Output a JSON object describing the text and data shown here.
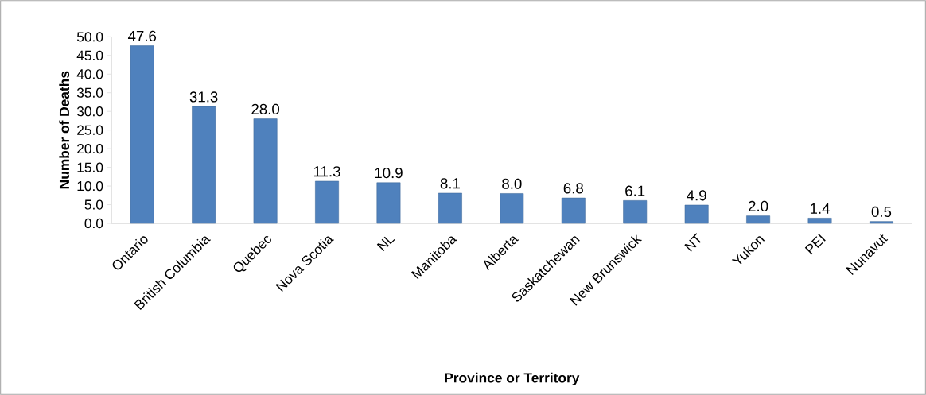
{
  "chart_data": {
    "type": "bar",
    "xlabel": "Province or Territory",
    "ylabel": "Number of Deaths",
    "categories": [
      "Ontario",
      "British Columbia",
      "Quebec",
      "Nova Scotia",
      "NL",
      "Manitoba",
      "Alberta",
      "Saskatchewan",
      "New Brunswick",
      "NT",
      "Yukon",
      "PEI",
      "Nunavut"
    ],
    "values": [
      47.6,
      31.3,
      28.0,
      11.3,
      10.9,
      8.1,
      8.0,
      6.8,
      6.1,
      4.9,
      2.0,
      1.4,
      0.5
    ],
    "color": "#4f81bd",
    "ylim": [
      0,
      50
    ],
    "yticks": [
      {
        "value": 0,
        "label": "0.0"
      },
      {
        "value": 5,
        "label": "5.0"
      },
      {
        "value": 10,
        "label": "10.0"
      },
      {
        "value": 15,
        "label": "15.0"
      },
      {
        "value": 20,
        "label": "20.0"
      },
      {
        "value": 25,
        "label": "25.0"
      },
      {
        "value": 30,
        "label": "30.0"
      },
      {
        "value": 35,
        "label": "35.0"
      },
      {
        "value": 40,
        "label": "40.0"
      },
      {
        "value": 45,
        "label": "45.0"
      },
      {
        "value": 50,
        "label": "50.0"
      }
    ],
    "value_labels": [
      "47.6",
      "31.3",
      "28.0",
      "11.3",
      "10.9",
      "8.1",
      "8.0",
      "6.8",
      "6.1",
      "4.9",
      "2.0",
      "1.4",
      "0.5"
    ],
    "grid": false
  }
}
